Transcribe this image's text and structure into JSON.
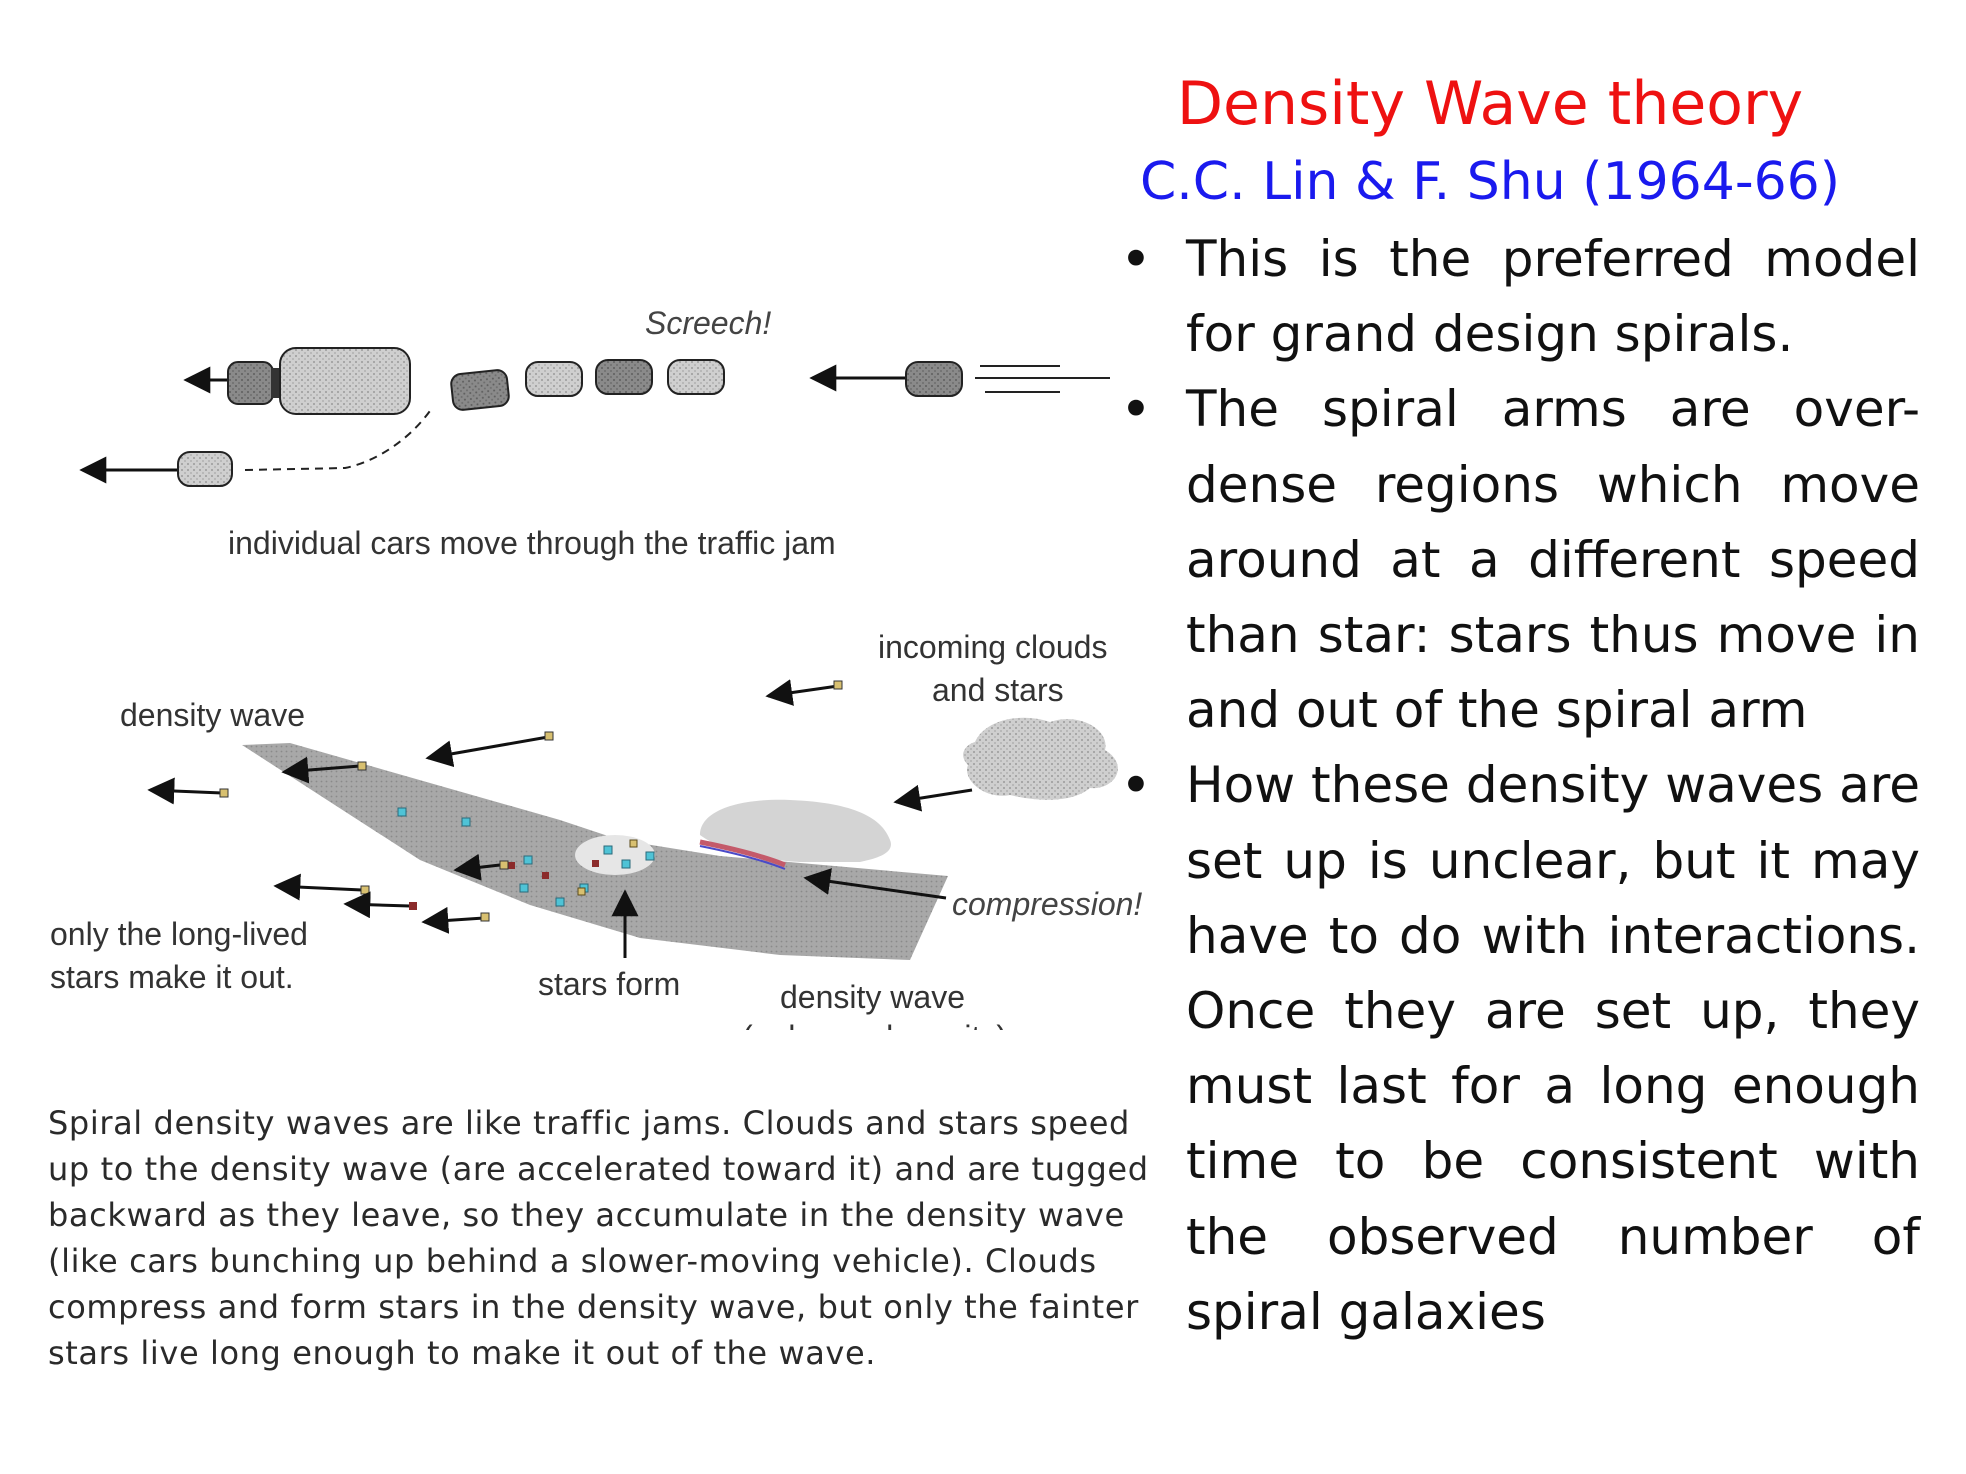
{
  "slide": {
    "title": "Density Wave theory",
    "subtitle": "C.C. Lin & F. Shu (1964-66)",
    "bullets": [
      "This is the preferred model for grand design spirals.",
      "The spiral arms are over-dense regions which move around at a different speed than star: stars thus move in and out of the spiral arm",
      "How these density waves are set up is unclear, but it may have to do with interactions.  Once they are set up, they must last for a long enough time to be consistent with the observed number of spiral galaxies"
    ]
  },
  "figure": {
    "traffic": {
      "screech": "Screech!",
      "caption": "individual cars move through the traffic jam"
    },
    "wave": {
      "density_wave_top": "density wave",
      "incoming_line1": "incoming clouds",
      "incoming_line2": "and stars",
      "compression": "compression!",
      "long_lived_line1": "only the long-lived",
      "long_lived_line2": "stars make it out.",
      "stars_form": "stars form",
      "density_wave_bottom_line1": "density wave",
      "density_wave_bottom_line2": "(enhanced gravity)"
    },
    "caption": "Spiral density waves are like traffic jams. Clouds and stars speed up to the density wave (are accelerated toward it) and are tugged backward as they leave, so they accumulate in the density wave (like cars bunching up behind a slower-moving vehicle). Clouds compress and form stars in the density wave, but only the fainter stars live long enough to make it out of the wave."
  },
  "colors": {
    "title": "#ee1111",
    "subtitle": "#1a1aee",
    "band": "#a8a8a8",
    "cloud": "#d6d6d6",
    "new_star": "#4fc3d6",
    "old_star": "#8b2b2b"
  }
}
